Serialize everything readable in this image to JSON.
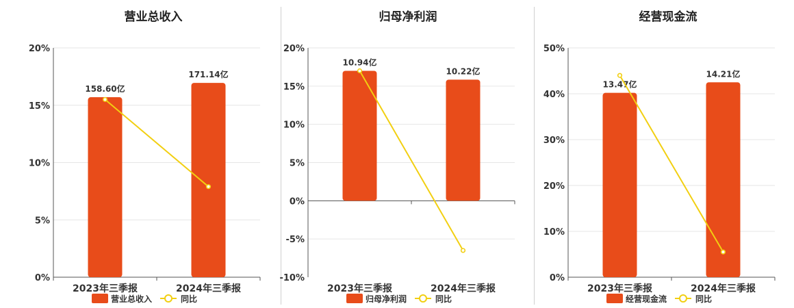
{
  "colors": {
    "bar": "#e84c1a",
    "line": "#f2cf11",
    "grid": "#e6e6e6",
    "axis": "#555555"
  },
  "chart_data": [
    {
      "type": "bar",
      "title": "营业总收入",
      "categories": [
        "2023年三季报",
        "2024年三季报"
      ],
      "series": [
        {
          "name": "营业总收入",
          "type": "bar",
          "values": [
            15.7,
            16.95
          ],
          "labels": [
            "158.60亿",
            "171.14亿"
          ]
        },
        {
          "name": "同比",
          "type": "line",
          "values": [
            15.5,
            7.9
          ]
        }
      ],
      "ylim": [
        0,
        20
      ],
      "yticks": [
        0,
        5,
        10,
        15,
        20
      ],
      "ytick_labels": [
        "0%",
        "5%",
        "10%",
        "15%",
        "20%"
      ],
      "legend": "bottom",
      "grid": true
    },
    {
      "type": "bar",
      "title": "归母净利润",
      "categories": [
        "2023年三季报",
        "2024年三季报"
      ],
      "series": [
        {
          "name": "归母净利润",
          "type": "bar",
          "values": [
            17,
            15.85
          ],
          "labels": [
            "10.94亿",
            "10.22亿"
          ]
        },
        {
          "name": "同比",
          "type": "line",
          "values": [
            17,
            -6.5
          ]
        }
      ],
      "ylim": [
        -10,
        20
      ],
      "yticks": [
        -10,
        -5,
        0,
        5,
        10,
        15,
        20
      ],
      "ytick_labels": [
        "-10%",
        "-5%",
        "0%",
        "5%",
        "10%",
        "15%",
        "20%"
      ],
      "legend": "bottom",
      "grid": true
    },
    {
      "type": "bar",
      "title": "经营现金流",
      "categories": [
        "2023年三季报",
        "2024年三季报"
      ],
      "series": [
        {
          "name": "经营现金流",
          "type": "bar",
          "values": [
            40.2,
            42.5
          ],
          "labels": [
            "13.47亿",
            "14.21亿"
          ]
        },
        {
          "name": "同比",
          "type": "line",
          "values": [
            44,
            5.5
          ]
        }
      ],
      "ylim": [
        0,
        50
      ],
      "yticks": [
        0,
        10,
        20,
        30,
        40,
        50
      ],
      "ytick_labels": [
        "0%",
        "10%",
        "20%",
        "30%",
        "40%",
        "50%"
      ],
      "legend": "bottom",
      "grid": true
    }
  ]
}
